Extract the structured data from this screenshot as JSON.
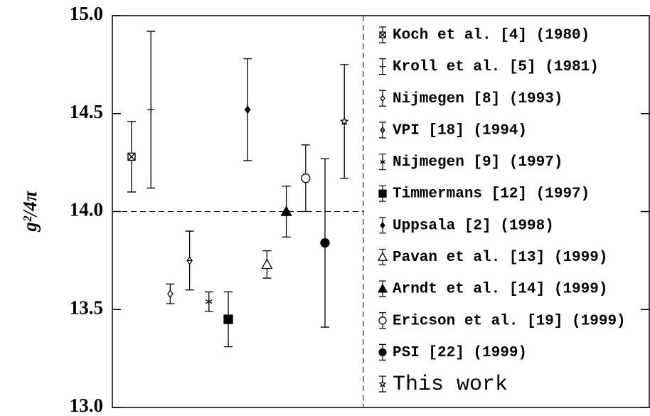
{
  "chart_data": {
    "type": "errorbar",
    "y_label": "g²/4π",
    "ylim": [
      13,
      15
    ],
    "yticks": [
      {
        "value": 13,
        "label": "13.0"
      },
      {
        "value": 13.5,
        "label": "13.5"
      },
      {
        "value": 14,
        "label": "14.0"
      },
      {
        "value": 14.5,
        "label": "14.5"
      },
      {
        "value": 15,
        "label": "15.0"
      }
    ],
    "reference_line": 14,
    "series": [
      {
        "name": "Koch et al. [4] (1980)",
        "marker": "boxcross",
        "values": [
          14.28
        ],
        "errors": [
          0.18
        ]
      },
      {
        "name": "Kroll et al. [5] (1981)",
        "marker": "plus",
        "values": [
          14.52
        ],
        "errors": [
          0.4
        ]
      },
      {
        "name": "Nijmegen [8] (1993)",
        "marker": "diamond",
        "values": [
          13.58
        ],
        "errors": [
          0.05
        ]
      },
      {
        "name": "VPI [18] (1994)",
        "marker": "diamondplus",
        "values": [
          13.75
        ],
        "errors": [
          0.15
        ]
      },
      {
        "name": "Nijmegen [9] (1997)",
        "marker": "asterisk",
        "values": [
          13.54
        ],
        "errors": [
          0.05
        ]
      },
      {
        "name": "Timmermans [12] (1997)",
        "marker": "square-filled",
        "values": [
          13.45
        ],
        "errors": [
          0.14
        ]
      },
      {
        "name": "Uppsala [2] (1998)",
        "marker": "diamond-filled",
        "values": [
          14.52
        ],
        "errors": [
          0.26
        ]
      },
      {
        "name": "Pavan et al. [13] (1999)",
        "marker": "triangle",
        "values": [
          13.73
        ],
        "errors": [
          0.07
        ]
      },
      {
        "name": "Arndt et al. [14] (1999)",
        "marker": "triangle-filled",
        "values": [
          14.0
        ],
        "errors": [
          0.13
        ]
      },
      {
        "name": "Ericson et al. [19] (1999)",
        "marker": "circle",
        "values": [
          14.17
        ],
        "errors": [
          0.17
        ]
      },
      {
        "name": "PSI [22] (1999)",
        "marker": "circle-filled",
        "values": [
          13.84
        ],
        "errors": [
          0.43
        ]
      },
      {
        "name": "This work",
        "marker": "star",
        "values": [
          14.46
        ],
        "errors": [
          0.29
        ]
      }
    ]
  }
}
